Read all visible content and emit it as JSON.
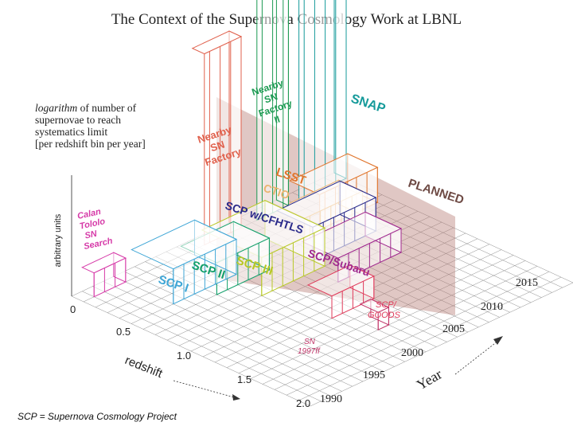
{
  "title": "The Context of the Supernova Cosmology Work at LBNL",
  "description": {
    "line1_italic": "logarithm",
    "line1_rest": " of number of",
    "line2": "supernovae to reach",
    "line3": "systematics limit",
    "line4": "[per redshift bin per year]"
  },
  "footnote": "SCP = Supernova Cosmology Project",
  "axes": {
    "vertical_label": "arbitrary units",
    "redshift_label": "redshift",
    "year_label": "Year",
    "redshift_ticks": [
      "0",
      "0.5",
      "1.0",
      "1.5",
      "2.0"
    ],
    "year_ticks": [
      "1990",
      "1995",
      "2000",
      "2005",
      "2010",
      "2015"
    ]
  },
  "planned_label": "PLANNED",
  "projects": [
    {
      "label": [
        "Calan",
        "Tololo",
        "SN",
        "Search"
      ],
      "color": "#d63aa8"
    },
    {
      "label": [
        "SCP I"
      ],
      "color": "#3fa6d6"
    },
    {
      "label": [
        "SCP II"
      ],
      "color": "#16a06c"
    },
    {
      "label": [
        "SCP III"
      ],
      "color": "#b8c826"
    },
    {
      "label": [
        "SCP w/CFHTLS"
      ],
      "color": "#2a2a8a"
    },
    {
      "label": [
        "CTIO"
      ],
      "color": "#eab470"
    },
    {
      "label": [
        "LSST"
      ],
      "color": "#e0762e"
    },
    {
      "label": [
        "SCP/Subaru"
      ],
      "color": "#a02a8e"
    },
    {
      "label": [
        "SCP/",
        "GOODS"
      ],
      "color": "#e03a5a"
    },
    {
      "label": [
        "SN",
        "1997ff"
      ],
      "color": "#c03468"
    },
    {
      "label": [
        "Nearby",
        "SN",
        "Factory"
      ],
      "color": "#e0604c"
    },
    {
      "label": [
        "Nearby",
        "SN",
        "Factory",
        "II"
      ],
      "color": "#1c9a52"
    },
    {
      "label": [
        "SNAP"
      ],
      "color": "#159a9a"
    }
  ],
  "colors": {
    "grid": "#8c8c8c",
    "planned_plane": "#b47a72",
    "ink": "#222222"
  }
}
